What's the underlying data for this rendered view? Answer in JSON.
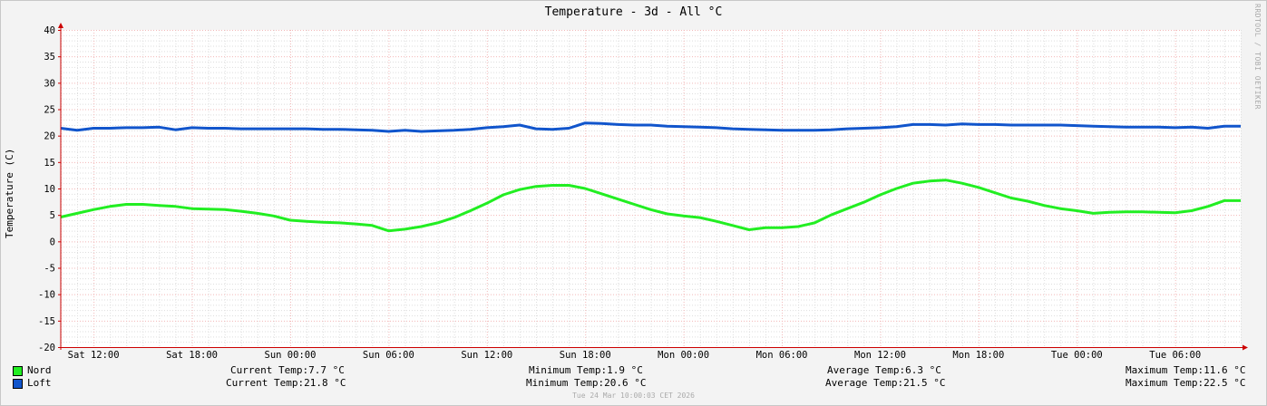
{
  "window": {
    "title": "Temperature - 3d - All °C",
    "watermark": "RRDTOOL / TOBI OETIKER",
    "footer": "Tue 24 Mar 10:00:03 CET 2026"
  },
  "legend": [
    {
      "name": "Nord",
      "color": "#22ee22",
      "current": "Current Temp:7.7 °C",
      "minimum": "Minimum Temp:1.9 °C",
      "average": "Average Temp:6.3 °C",
      "maximum": "Maximum Temp:11.6 °C"
    },
    {
      "name": "Loft",
      "color": "#1155cc",
      "current": "Current Temp:21.8 °C",
      "minimum": "Minimum Temp:20.6 °C",
      "average": "Average Temp:21.5 °C",
      "maximum": "Maximum Temp:22.5 °C"
    }
  ],
  "chart_data": {
    "type": "line",
    "title": "Temperature - 3d - All °C",
    "xlabel": "",
    "ylabel": "Temperature (C)",
    "ylim": [
      -20,
      40
    ],
    "yticks": [
      40,
      35,
      30,
      25,
      20,
      15,
      10,
      5,
      0,
      -5,
      -10,
      -15,
      -20
    ],
    "xticks": [
      "Sat 12:00",
      "Sat 18:00",
      "Sun 00:00",
      "Sun 06:00",
      "Sun 12:00",
      "Sun 18:00",
      "Mon 00:00",
      "Mon 06:00",
      "Mon 12:00",
      "Mon 18:00",
      "Tue 00:00",
      "Tue 06:00"
    ],
    "xtick_hours": [
      2,
      8,
      14,
      20,
      26,
      32,
      38,
      44,
      50,
      56,
      62,
      68
    ],
    "xlim_hours": [
      0,
      72
    ],
    "grid": true,
    "legend_position": "bottom-left",
    "series": [
      {
        "name": "Nord",
        "color": "#22ee22",
        "x": [
          0,
          1,
          2,
          3,
          4,
          5,
          6,
          7,
          8,
          9,
          10,
          11,
          12,
          13,
          14,
          15,
          16,
          17,
          18,
          19,
          20,
          21,
          22,
          23,
          24,
          25,
          26,
          27,
          28,
          29,
          30,
          31,
          32,
          33,
          34,
          35,
          36,
          37,
          38,
          39,
          40,
          41,
          42,
          43,
          44,
          45,
          46,
          47,
          48,
          49,
          50,
          51,
          52,
          53,
          54,
          55,
          56,
          57,
          58,
          59,
          60,
          61,
          62,
          63,
          64,
          65,
          66,
          67,
          68,
          69,
          70,
          71,
          72
        ],
        "values": [
          4.6,
          5.3,
          6.0,
          6.6,
          7.0,
          7.0,
          6.8,
          6.6,
          6.2,
          6.1,
          6.0,
          5.7,
          5.3,
          4.8,
          4.0,
          3.8,
          3.6,
          3.5,
          3.3,
          3.0,
          2.0,
          2.3,
          2.8,
          3.5,
          4.5,
          5.8,
          7.2,
          8.8,
          9.8,
          10.4,
          10.6,
          10.6,
          10.0,
          9.0,
          8.0,
          7.0,
          6.0,
          5.2,
          4.8,
          4.5,
          3.8,
          3.0,
          2.2,
          2.6,
          2.6,
          2.8,
          3.5,
          5.0,
          6.2,
          7.4,
          8.8,
          10.0,
          11.0,
          11.4,
          11.6,
          11.0,
          10.2,
          9.2,
          8.2,
          7.6,
          6.8,
          6.2,
          5.8,
          5.3,
          5.5,
          5.6,
          5.6,
          5.5,
          5.4,
          5.8,
          6.6,
          7.7,
          7.7
        ]
      },
      {
        "name": "Loft",
        "color": "#1155cc",
        "x": [
          0,
          1,
          2,
          3,
          4,
          5,
          6,
          7,
          8,
          9,
          10,
          11,
          12,
          13,
          14,
          15,
          16,
          17,
          18,
          19,
          20,
          21,
          22,
          23,
          24,
          25,
          26,
          27,
          28,
          29,
          30,
          31,
          32,
          33,
          34,
          35,
          36,
          37,
          38,
          39,
          40,
          41,
          42,
          43,
          44,
          45,
          46,
          47,
          48,
          49,
          50,
          51,
          52,
          53,
          54,
          55,
          56,
          57,
          58,
          59,
          60,
          61,
          62,
          63,
          64,
          65,
          66,
          67,
          68,
          69,
          70,
          71,
          72
        ],
        "values": [
          21.4,
          21.0,
          21.4,
          21.4,
          21.5,
          21.5,
          21.6,
          21.1,
          21.5,
          21.4,
          21.4,
          21.3,
          21.3,
          21.3,
          21.3,
          21.3,
          21.2,
          21.2,
          21.1,
          21.0,
          20.8,
          21.0,
          20.8,
          20.9,
          21.0,
          21.2,
          21.5,
          21.7,
          22.0,
          21.3,
          21.2,
          21.4,
          22.4,
          22.3,
          22.1,
          22.0,
          22.0,
          21.8,
          21.7,
          21.6,
          21.5,
          21.3,
          21.2,
          21.1,
          21.0,
          21.0,
          21.0,
          21.1,
          21.3,
          21.4,
          21.5,
          21.7,
          22.1,
          22.1,
          22.0,
          22.2,
          22.1,
          22.1,
          22.0,
          22.0,
          22.0,
          22.0,
          21.9,
          21.8,
          21.7,
          21.6,
          21.6,
          21.6,
          21.5,
          21.6,
          21.4,
          21.8,
          21.8
        ]
      }
    ]
  }
}
